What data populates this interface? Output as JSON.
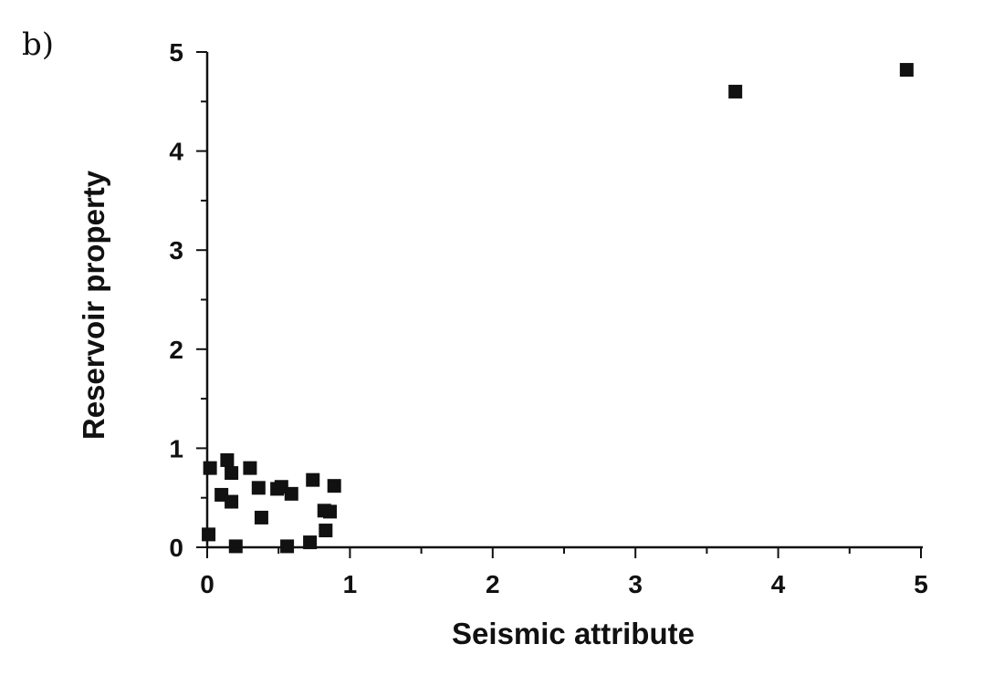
{
  "panel_label": "b)",
  "chart_data": {
    "type": "scatter",
    "title": "",
    "xlabel": "Seismic attribute",
    "ylabel": "Reservoir property",
    "xlim": [
      0,
      5
    ],
    "ylim": [
      0,
      5
    ],
    "x_ticks": [
      "0",
      "1",
      "2",
      "3",
      "4",
      "5"
    ],
    "y_ticks": [
      "0",
      "1",
      "2",
      "3",
      "4",
      "5"
    ],
    "grid": false,
    "legend": "none",
    "marker": "square",
    "marker_color": "#111111",
    "series": [
      {
        "points": [
          {
            "x": 0.02,
            "y": 0.8
          },
          {
            "x": 0.01,
            "y": 0.13
          },
          {
            "x": 0.1,
            "y": 0.53
          },
          {
            "x": 0.14,
            "y": 0.88
          },
          {
            "x": 0.17,
            "y": 0.75
          },
          {
            "x": 0.17,
            "y": 0.46
          },
          {
            "x": 0.2,
            "y": 0.01
          },
          {
            "x": 0.3,
            "y": 0.8
          },
          {
            "x": 0.36,
            "y": 0.6
          },
          {
            "x": 0.38,
            "y": 0.3
          },
          {
            "x": 0.49,
            "y": 0.59
          },
          {
            "x": 0.52,
            "y": 0.61
          },
          {
            "x": 0.56,
            "y": 0.01
          },
          {
            "x": 0.59,
            "y": 0.54
          },
          {
            "x": 0.72,
            "y": 0.05
          },
          {
            "x": 0.74,
            "y": 0.68
          },
          {
            "x": 0.82,
            "y": 0.37
          },
          {
            "x": 0.83,
            "y": 0.17
          },
          {
            "x": 0.86,
            "y": 0.36
          },
          {
            "x": 0.89,
            "y": 0.62
          },
          {
            "x": 3.7,
            "y": 4.6
          },
          {
            "x": 4.9,
            "y": 4.82
          }
        ]
      }
    ]
  }
}
